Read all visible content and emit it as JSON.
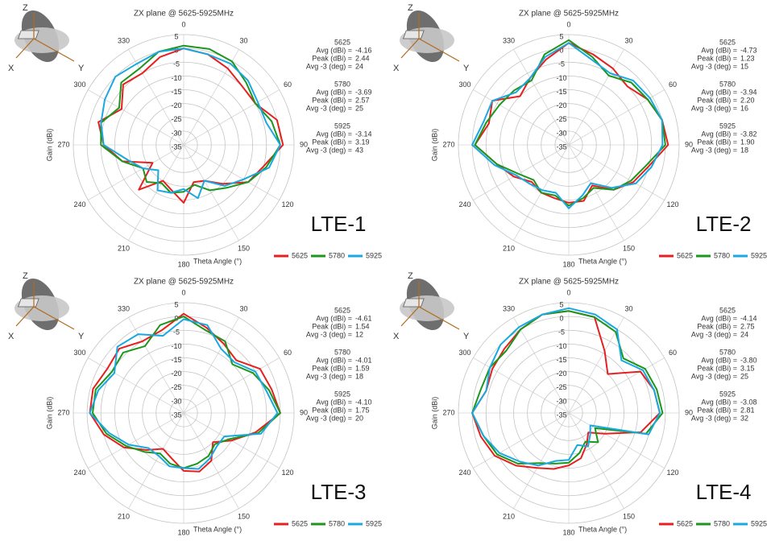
{
  "chart_data": [
    {
      "type": "polar",
      "title": "ZX plane @ 5625-5925MHz",
      "panel_label": "LTE-1",
      "r_axis_label": "Gain (dBi)",
      "theta_axis_label": "Theta Angle (°)",
      "icon_labels": [
        "Z",
        "X",
        "Y"
      ],
      "rlim": [
        -35,
        5
      ],
      "rticks": [
        5,
        0,
        -5,
        -10,
        -15,
        -20,
        -25,
        -30,
        -35
      ],
      "thetaticks": [
        0,
        30,
        60,
        90,
        120,
        150,
        180,
        210,
        240,
        270,
        300,
        330
      ],
      "theta": [
        0,
        15,
        30,
        45,
        60,
        75,
        90,
        105,
        120,
        135,
        150,
        165,
        180,
        195,
        210,
        225,
        240,
        255,
        270,
        285,
        300,
        315,
        330,
        345
      ],
      "series": [
        {
          "name": "5625",
          "color": "#e62020",
          "values": [
            0,
            -1,
            -3,
            -5,
            -5,
            0,
            1,
            -5,
            -8,
            -15,
            -20,
            -21,
            -14,
            -18,
            -20,
            -12,
            -22,
            -12,
            -6,
            -3,
            -9,
            -4,
            -5,
            -2
          ]
        },
        {
          "name": "5780",
          "color": "#1c961c",
          "values": [
            1,
            1,
            0,
            -3,
            -5,
            -2,
            0,
            -4,
            -8,
            -13,
            -16,
            -20,
            -18,
            -17,
            -19,
            -16,
            -18,
            -12,
            -5,
            -4,
            -8,
            -3,
            -3,
            0
          ]
        },
        {
          "name": "5925",
          "color": "#1aa8e0",
          "values": [
            0,
            -1,
            -1,
            -2,
            -4,
            -4,
            0,
            -3,
            -10,
            -14,
            -20,
            -15,
            -19,
            -17,
            -16,
            -22,
            -18,
            -14,
            -6,
            -4,
            -2,
            0,
            -1,
            0
          ]
        }
      ],
      "stat_labels": [
        "Avg (dBi) =",
        "Peak (dBi) =",
        "Avg -3 (deg) ="
      ],
      "stats": [
        {
          "name": "5625",
          "values": [
            -4.16,
            2.44,
            24
          ]
        },
        {
          "name": "5780",
          "values": [
            -3.69,
            2.57,
            25
          ]
        },
        {
          "name": "5925",
          "values": [
            -3.14,
            3.19,
            43
          ]
        }
      ]
    },
    {
      "type": "polar",
      "title": "ZX plane @ 5625-5925MHz",
      "panel_label": "LTE-2",
      "r_axis_label": "Gain (dBi)",
      "theta_axis_label": "Theta Angle (°)",
      "icon_labels": [
        "Z",
        "X",
        "Y"
      ],
      "rlim": [
        -35,
        5
      ],
      "rticks": [
        5,
        0,
        -5,
        -10,
        -15,
        -20,
        -25,
        -30,
        -35
      ],
      "thetaticks": [
        0,
        30,
        60,
        90,
        120,
        150,
        180,
        210,
        240,
        270,
        300,
        330
      ],
      "theta": [
        0,
        15,
        30,
        45,
        60,
        75,
        90,
        105,
        120,
        135,
        150,
        165,
        180,
        195,
        210,
        225,
        240,
        255,
        270,
        285,
        300,
        315,
        330,
        345
      ],
      "series": [
        {
          "name": "5625",
          "color": "#e62020",
          "values": [
            2,
            -1,
            -3,
            -5,
            -2,
            0,
            1,
            -5,
            -8,
            -12,
            -18,
            -14,
            -14,
            -15,
            -15,
            -16,
            -12,
            -8,
            -1,
            -5,
            -3,
            -10,
            -7,
            -3
          ]
        },
        {
          "name": "5780",
          "color": "#1c961c",
          "values": [
            3,
            -2,
            -6,
            -3,
            -2,
            0,
            0,
            -6,
            -9,
            -12,
            -17,
            -15,
            -13,
            -16,
            -15,
            -17,
            -14,
            -8,
            -1,
            -4,
            -6,
            -7,
            -8,
            -1
          ]
        },
        {
          "name": "5925",
          "color": "#1aa8e0",
          "values": [
            2,
            -3,
            -5,
            -2,
            -1,
            0,
            -1,
            -4,
            -7,
            -13,
            -19,
            -16,
            -12,
            -17,
            -16,
            -15,
            -13,
            -7,
            0,
            -3,
            -3,
            -8,
            -7,
            -2
          ]
        }
      ],
      "stat_labels": [
        "Avg (dBi) =",
        "Peak (dBi) =",
        "Avg -3 (deg) ="
      ],
      "stats": [
        {
          "name": "5625",
          "values": [
            -4.73,
            1.23,
            15
          ]
        },
        {
          "name": "5780",
          "values": [
            -3.94,
            {
              "value": 2.2,
              "label": "2.20"
            },
            16
          ]
        },
        {
          "name": "5925",
          "values": [
            -3.82,
            {
              "value": 1.9,
              "label": "1.90"
            },
            18
          ]
        }
      ]
    },
    {
      "type": "polar",
      "title": "ZX plane @ 5625-5925MHz",
      "panel_label": "LTE-3",
      "r_axis_label": "Gain (dBi)",
      "theta_axis_label": "Theta Angle (°)",
      "icon_labels": [
        "Z",
        "X",
        "Y"
      ],
      "rlim": [
        -35,
        5
      ],
      "rticks": [
        5,
        0,
        -5,
        -10,
        -15,
        -20,
        -25,
        -30,
        -35
      ],
      "thetaticks": [
        0,
        30,
        60,
        90,
        120,
        150,
        180,
        210,
        240,
        270,
        300,
        330
      ],
      "theta": [
        0,
        15,
        30,
        45,
        60,
        75,
        90,
        105,
        120,
        135,
        150,
        165,
        180,
        195,
        210,
        225,
        240,
        255,
        270,
        285,
        300,
        315,
        330,
        345
      ],
      "series": [
        {
          "name": "5625",
          "color": "#e62020",
          "values": [
            1,
            -3,
            -6,
            -8,
            -3,
            -2,
            0,
            -8,
            -15,
            -20,
            -15,
            -13,
            -14,
            -18,
            -20,
            -16,
            -10,
            -5,
            -1,
            -1,
            -3,
            -2,
            -5,
            -4
          ]
        },
        {
          "name": "5780",
          "color": "#1c961c",
          "values": [
            0,
            -4,
            -5,
            -10,
            -6,
            -3,
            0,
            -7,
            -16,
            -19,
            -17,
            -16,
            -15,
            -16,
            -18,
            -15,
            -11,
            -6,
            -2,
            -2,
            -5,
            -4,
            -7,
            -2
          ]
        },
        {
          "name": "5925",
          "color": "#1aa8e0",
          "values": [
            -1,
            -2,
            -8,
            -9,
            -5,
            -4,
            -1,
            -6,
            -18,
            -18,
            -16,
            -14,
            -15,
            -15,
            -17,
            -17,
            -12,
            -7,
            -1,
            -3,
            -6,
            -1,
            -2,
            -6
          ]
        }
      ],
      "stat_labels": [
        "Avg (dBi) =",
        "Peak (dBi) =",
        "Avg -3 (deg) ="
      ],
      "stats": [
        {
          "name": "5625",
          "values": [
            -4.61,
            1.54,
            12
          ]
        },
        {
          "name": "5780",
          "values": [
            -4.01,
            1.59,
            18
          ]
        },
        {
          "name": "5925",
          "values": [
            {
              "value": -4.1,
              "label": "-4.10"
            },
            1.75,
            20
          ]
        }
      ]
    },
    {
      "type": "polar",
      "title": "ZX plane @ 5625-5925MHz",
      "panel_label": "LTE-4",
      "r_axis_label": "Gain (dBi)",
      "theta_axis_label": "Theta Angle (°)",
      "icon_labels": [
        "Z",
        "X",
        "Y"
      ],
      "rlim": [
        -35,
        5
      ],
      "rticks": [
        5,
        0,
        -5,
        -10,
        -15,
        -20,
        -25,
        -30,
        -35
      ],
      "thetaticks": [
        0,
        30,
        60,
        90,
        120,
        150,
        180,
        210,
        240,
        270,
        300,
        330
      ],
      "theta": [
        0,
        15,
        30,
        45,
        60,
        75,
        90,
        105,
        120,
        135,
        150,
        165,
        180,
        195,
        210,
        225,
        240,
        255,
        270,
        285,
        300,
        315,
        330,
        345
      ],
      "series": [
        {
          "name": "5625",
          "color": "#e62020",
          "values": [
            2,
            1,
            -9,
            -15,
            -5,
            -3,
            -2,
            -8,
            -20,
            -25,
            -22,
            -18,
            -16,
            -14,
            -12,
            -8,
            -4,
            -2,
            0,
            -4,
            -3,
            -2,
            0,
            2
          ]
        },
        {
          "name": "5780",
          "color": "#1c961c",
          "values": [
            2,
            1,
            -1,
            -7,
            -3,
            -2,
            -1,
            -6,
            -24,
            -20,
            -23,
            -20,
            -17,
            -16,
            -14,
            -9,
            -5,
            -3,
            0,
            -2,
            -2,
            -3,
            0,
            2
          ]
        },
        {
          "name": "5925",
          "color": "#1aa8e0",
          "values": [
            3,
            2,
            0,
            -8,
            -4,
            -3,
            -2,
            -5,
            -26,
            -24,
            -21,
            -23,
            -18,
            -17,
            -13,
            -10,
            -6,
            -3,
            0,
            -4,
            -2,
            0,
            1,
            2
          ]
        }
      ],
      "stat_labels": [
        "Avg (dBi) =",
        "Peak (dBi) =",
        "Avg -3 (deg) ="
      ],
      "stats": [
        {
          "name": "5625",
          "values": [
            -4.14,
            2.75,
            24
          ]
        },
        {
          "name": "5780",
          "values": [
            {
              "value": -3.8,
              "label": "-3.80"
            },
            3.15,
            25
          ]
        },
        {
          "name": "5925",
          "values": [
            -3.08,
            2.81,
            32
          ]
        }
      ]
    }
  ]
}
